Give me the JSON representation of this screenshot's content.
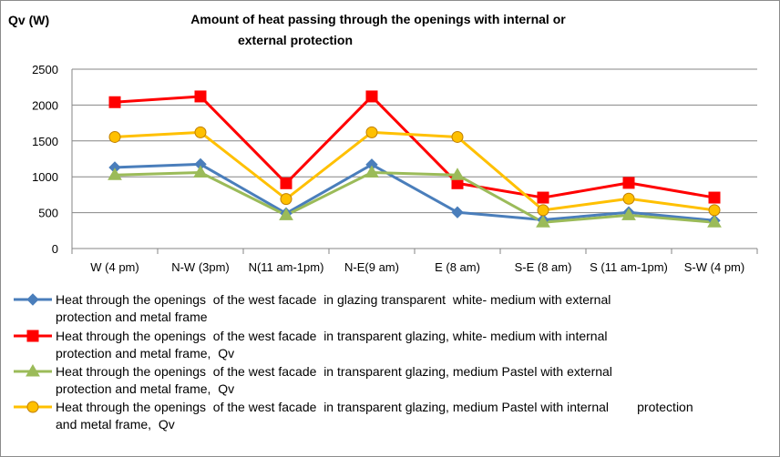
{
  "chart_data": {
    "type": "line",
    "title": "Amount of heat passing through the openings with  internal or external protection",
    "title_lines": [
      "Amount of heat passing through the openings with  internal or",
      "external protection"
    ],
    "ylabel": "Qv (W)",
    "xlabel": "",
    "ylim": [
      0,
      2500
    ],
    "yticks": [
      0,
      500,
      1000,
      1500,
      2000,
      2500
    ],
    "grid": true,
    "legend_position": "bottom",
    "categories": [
      "W (4 pm)",
      "N-W (3pm)",
      "N(11 am-1pm)",
      "N-E(9 am)",
      "E (8 am)",
      "S-E (8 am)",
      "S (11 am-1pm)",
      "S-W (4 pm)"
    ],
    "series": [
      {
        "name": "Heat through the openings of the west facade in glazing transparent white- medium with external protection and metal frame",
        "legend_lines": [
          "Heat through the openings  of the west facade  in glazing transparent  white- medium with external",
          "protection and metal frame"
        ],
        "color": "#4a7ebb",
        "marker": "diamond",
        "values": [
          1130,
          1175,
          490,
          1170,
          505,
          400,
          505,
          390
        ]
      },
      {
        "name": "Heat through the openings of the west facade in transparent glazing, white- medium with internal protection and metal frame, Qv",
        "legend_lines": [
          "Heat through the openings  of the west facade  in transparent glazing, white- medium with internal",
          "protection and metal frame,  Qv"
        ],
        "color": "#ff0000",
        "marker": "square",
        "values": [
          2040,
          2120,
          910,
          2120,
          910,
          710,
          915,
          710
        ]
      },
      {
        "name": "Heat through the openings of the west facade in transparent glazing, medium Pastel with external protection and metal frame, Qv",
        "legend_lines": [
          "Heat through the openings  of the west facade  in transparent glazing, medium Pastel with external",
          "protection and metal frame,  Qv"
        ],
        "color": "#9bbb59",
        "marker": "triangle",
        "values": [
          1025,
          1060,
          465,
          1060,
          1025,
          365,
          465,
          365
        ]
      },
      {
        "name": "Heat through the openings of the west facade in transparent glazing, medium Pastel with internal protection and metal frame, Qv",
        "legend_lines": [
          "Heat through the openings  of the west facade  in transparent glazing, medium Pastel with internal        protection",
          "and metal frame,  Qv"
        ],
        "color": "#ffc000",
        "marker": "circle",
        "values": [
          1555,
          1620,
          690,
          1620,
          1555,
          535,
          695,
          535
        ]
      }
    ]
  }
}
